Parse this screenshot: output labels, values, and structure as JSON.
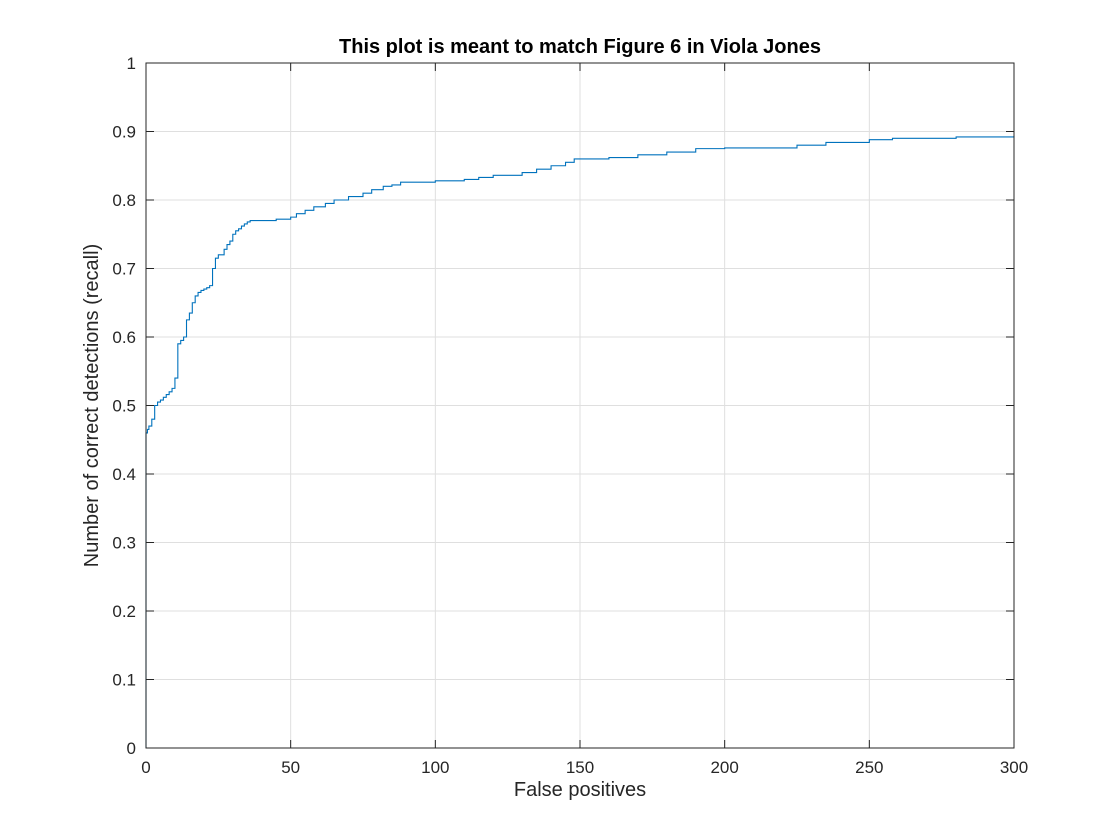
{
  "chart_data": {
    "type": "line",
    "title": "This plot is meant to match Figure 6 in Viola Jones",
    "xlabel": "False positives",
    "ylabel": "Number of correct detections (recall)",
    "xlim": [
      0,
      300
    ],
    "ylim": [
      0,
      1
    ],
    "xticks": [
      0,
      50,
      100,
      150,
      200,
      250,
      300
    ],
    "yticks": [
      0,
      0.1,
      0.2,
      0.3,
      0.4,
      0.5,
      0.6,
      0.7,
      0.8,
      0.9,
      1
    ],
    "xtick_labels": [
      "0",
      "50",
      "100",
      "150",
      "200",
      "250",
      "300"
    ],
    "ytick_labels": [
      "0",
      "0.1",
      "0.2",
      "0.3",
      "0.4",
      "0.5",
      "0.6",
      "0.7",
      "0.8",
      "0.9",
      "1"
    ],
    "grid": true,
    "legend": null,
    "line_style": "step",
    "series": [
      {
        "color": "#0072BD",
        "x": [
          0,
          0,
          0.5,
          1,
          2,
          3,
          4,
          5,
          6,
          7,
          8,
          9,
          10,
          11,
          12,
          13,
          14,
          15,
          16,
          17,
          18,
          19,
          20,
          21,
          22,
          23,
          24,
          25,
          27,
          28,
          29,
          30,
          31,
          32,
          33,
          34,
          35,
          36,
          37,
          40,
          45,
          50,
          52,
          55,
          58,
          62,
          65,
          70,
          75,
          78,
          82,
          85,
          88,
          100,
          110,
          115,
          120,
          130,
          135,
          140,
          145,
          148,
          160,
          170,
          180,
          190,
          200,
          225,
          235,
          250,
          258,
          280,
          300
        ],
        "y": [
          0,
          0.46,
          0.465,
          0.47,
          0.48,
          0.5,
          0.505,
          0.508,
          0.512,
          0.516,
          0.52,
          0.525,
          0.54,
          0.59,
          0.595,
          0.6,
          0.625,
          0.635,
          0.65,
          0.66,
          0.665,
          0.668,
          0.67,
          0.672,
          0.675,
          0.7,
          0.715,
          0.72,
          0.728,
          0.735,
          0.74,
          0.75,
          0.755,
          0.758,
          0.762,
          0.765,
          0.768,
          0.77,
          0.77,
          0.77,
          0.772,
          0.775,
          0.78,
          0.785,
          0.79,
          0.795,
          0.8,
          0.805,
          0.81,
          0.815,
          0.82,
          0.822,
          0.826,
          0.828,
          0.83,
          0.833,
          0.836,
          0.84,
          0.845,
          0.85,
          0.855,
          0.86,
          0.862,
          0.866,
          0.87,
          0.875,
          0.876,
          0.88,
          0.884,
          0.888,
          0.89,
          0.892,
          0.894
        ]
      }
    ]
  }
}
